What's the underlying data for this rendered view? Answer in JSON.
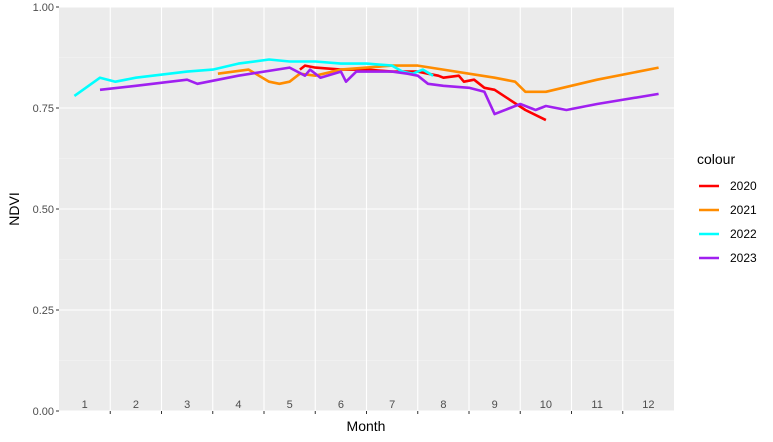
{
  "chart_data": {
    "type": "line",
    "title": "",
    "xlabel": "Month",
    "ylabel": "NDVI",
    "ylim": [
      0,
      1
    ],
    "y_ticks": [
      "0.00",
      "0.25",
      "0.50",
      "0.75",
      "1.00"
    ],
    "y_tick_values": [
      0,
      0.25,
      0.5,
      0.75,
      1
    ],
    "x_range": [
      0.5,
      12.5
    ],
    "x_labels": [
      "1",
      "2",
      "3",
      "4",
      "5",
      "6",
      "7",
      "8",
      "9",
      "10",
      "11",
      "12"
    ],
    "grid": true,
    "legend": {
      "title": "colour",
      "position": "right"
    },
    "series": [
      {
        "name": "2020",
        "color": "#ff0000",
        "x": [
          5.2,
          5.3,
          5.5,
          6.0,
          6.5,
          7.0,
          7.5,
          7.7,
          7.9,
          8.0,
          8.3,
          8.4,
          8.6,
          8.8,
          9.0,
          9.3,
          9.6,
          10.0
        ],
        "y": [
          0.845,
          0.855,
          0.85,
          0.845,
          0.845,
          0.84,
          0.84,
          0.835,
          0.83,
          0.825,
          0.83,
          0.815,
          0.82,
          0.8,
          0.795,
          0.77,
          0.745,
          0.72
        ]
      },
      {
        "name": "2021",
        "color": "#ff8c00",
        "x": [
          3.6,
          4.2,
          4.6,
          4.8,
          5.0,
          5.2,
          5.5,
          6.0,
          6.5,
          7.0,
          7.5,
          8.0,
          8.5,
          9.0,
          9.4,
          9.6,
          10.0,
          11.0,
          12.2
        ],
        "y": [
          0.835,
          0.845,
          0.815,
          0.81,
          0.815,
          0.835,
          0.83,
          0.845,
          0.85,
          0.855,
          0.855,
          0.845,
          0.835,
          0.825,
          0.815,
          0.79,
          0.79,
          0.82,
          0.85
        ]
      },
      {
        "name": "2022",
        "color": "#00ffff",
        "x": [
          0.8,
          1.3,
          1.6,
          2.0,
          3.0,
          3.5,
          4.0,
          4.6,
          5.0,
          5.5,
          6.0,
          6.5,
          7.0,
          7.2,
          7.4,
          7.6,
          7.8
        ],
        "y": [
          0.78,
          0.825,
          0.815,
          0.825,
          0.84,
          0.845,
          0.86,
          0.87,
          0.865,
          0.865,
          0.86,
          0.86,
          0.855,
          0.84,
          0.835,
          0.845,
          0.83
        ]
      },
      {
        "name": "2023",
        "color": "#a020f0",
        "x": [
          1.3,
          2.0,
          3.0,
          3.2,
          4.0,
          5.0,
          5.3,
          5.4,
          5.6,
          6.0,
          6.1,
          6.3,
          6.5,
          7.0,
          7.3,
          7.5,
          7.7,
          8.0,
          8.5,
          8.8,
          9.0,
          9.5,
          9.8,
          10.0,
          10.4,
          11.0,
          12.2
        ],
        "y": [
          0.795,
          0.805,
          0.82,
          0.81,
          0.83,
          0.85,
          0.83,
          0.845,
          0.825,
          0.84,
          0.815,
          0.84,
          0.84,
          0.84,
          0.835,
          0.83,
          0.81,
          0.805,
          0.8,
          0.79,
          0.735,
          0.76,
          0.745,
          0.755,
          0.745,
          0.76,
          0.785
        ]
      }
    ]
  }
}
